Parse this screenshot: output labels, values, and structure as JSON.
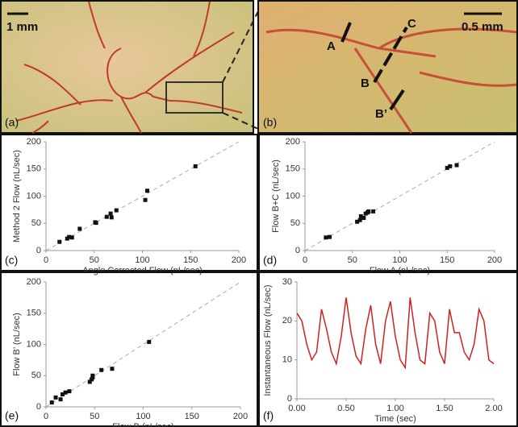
{
  "photos": {
    "a": {
      "scale": "1 mm",
      "panel_label": "(a)"
    },
    "b": {
      "scale": "0.5 mm",
      "panel_label": "(b)",
      "points": [
        "A",
        "B",
        "C",
        "B’"
      ]
    }
  },
  "chart_data": [
    {
      "type": "scatter",
      "panel_label": "(c)",
      "x_label": "Angle Corrected Flow (nL/sec)",
      "y_label": "Method 2 Flow (nL/sec)",
      "xlim": [
        0,
        200
      ],
      "xticks": [
        0,
        50,
        100,
        150,
        200
      ],
      "ylim": [
        0,
        200
      ],
      "yticks": [
        0,
        50,
        100,
        150,
        200
      ],
      "color": "#111111",
      "x": [
        14,
        22,
        24,
        27,
        35,
        51,
        52,
        63,
        67,
        68,
        73,
        103,
        105,
        155
      ],
      "values": [
        16,
        22,
        25,
        24,
        40,
        52,
        51,
        62,
        68,
        61,
        74,
        93,
        110,
        155
      ]
    },
    {
      "type": "scatter",
      "panel_label": "(d)",
      "x_label": "Flow A (nL/sec)",
      "y_label": "Flow B+C (nL/sec)",
      "xlim": [
        0,
        200
      ],
      "xticks": [
        0,
        50,
        100,
        150,
        200
      ],
      "ylim": [
        0,
        200
      ],
      "yticks": [
        0,
        50,
        100,
        150,
        200
      ],
      "color": "#111111",
      "x": [
        22,
        26,
        55,
        58,
        59,
        62,
        64,
        66,
        67,
        72,
        150,
        153,
        160
      ],
      "values": [
        24,
        25,
        53,
        56,
        63,
        60,
        68,
        70,
        72,
        72,
        152,
        155,
        157
      ]
    },
    {
      "type": "scatter",
      "panel_label": "(e)",
      "x_label": "Flow B (nL/sec)",
      "y_label": "Flow B’ (nL/sec)",
      "xlim": [
        0,
        200
      ],
      "xticks": [
        0,
        50,
        100,
        150,
        200
      ],
      "ylim": [
        0,
        200
      ],
      "yticks": [
        0,
        50,
        100,
        150,
        200
      ],
      "color": "#111111",
      "x": [
        6,
        10,
        15,
        17,
        20,
        24,
        45,
        47,
        48,
        48,
        57,
        68,
        106
      ],
      "values": [
        7,
        15,
        12,
        20,
        23,
        25,
        40,
        44,
        50,
        47,
        59,
        61,
        104
      ]
    },
    {
      "type": "line",
      "panel_label": "(f)",
      "x_label": "Time (sec)",
      "y_label": "Instantaneous Flow (nL/sec)",
      "xlim": [
        0,
        2
      ],
      "xticks": [
        {
          "value": 0,
          "label": "0.00"
        },
        {
          "value": 0.5,
          "label": "0.50"
        },
        {
          "value": 1,
          "label": "1.00"
        },
        {
          "value": 1.5,
          "label": "1.50"
        },
        {
          "value": 2,
          "label": "2.00"
        }
      ],
      "ylim": [
        0,
        30
      ],
      "yticks": [
        0,
        10,
        20,
        30
      ],
      "color": "#cc2222",
      "x": [
        0,
        0.05,
        0.1,
        0.15,
        0.2,
        0.25,
        0.3,
        0.35,
        0.4,
        0.45,
        0.5,
        0.55,
        0.6,
        0.65,
        0.7,
        0.75,
        0.8,
        0.85,
        0.9,
        0.95,
        1,
        1.05,
        1.1,
        1.15,
        1.2,
        1.25,
        1.3,
        1.35,
        1.4,
        1.45,
        1.5,
        1.55,
        1.6,
        1.65,
        1.7,
        1.75,
        1.8,
        1.85,
        1.9,
        1.95,
        2
      ],
      "values": [
        22,
        20,
        14,
        10,
        12,
        23,
        18,
        12,
        9,
        16,
        26,
        17,
        11,
        9,
        18,
        24,
        14,
        9,
        20,
        25,
        16,
        10,
        8,
        26,
        17,
        10,
        9,
        22,
        20,
        12,
        9,
        23,
        17,
        17,
        12,
        10,
        14,
        23,
        20,
        10,
        9
      ]
    }
  ]
}
